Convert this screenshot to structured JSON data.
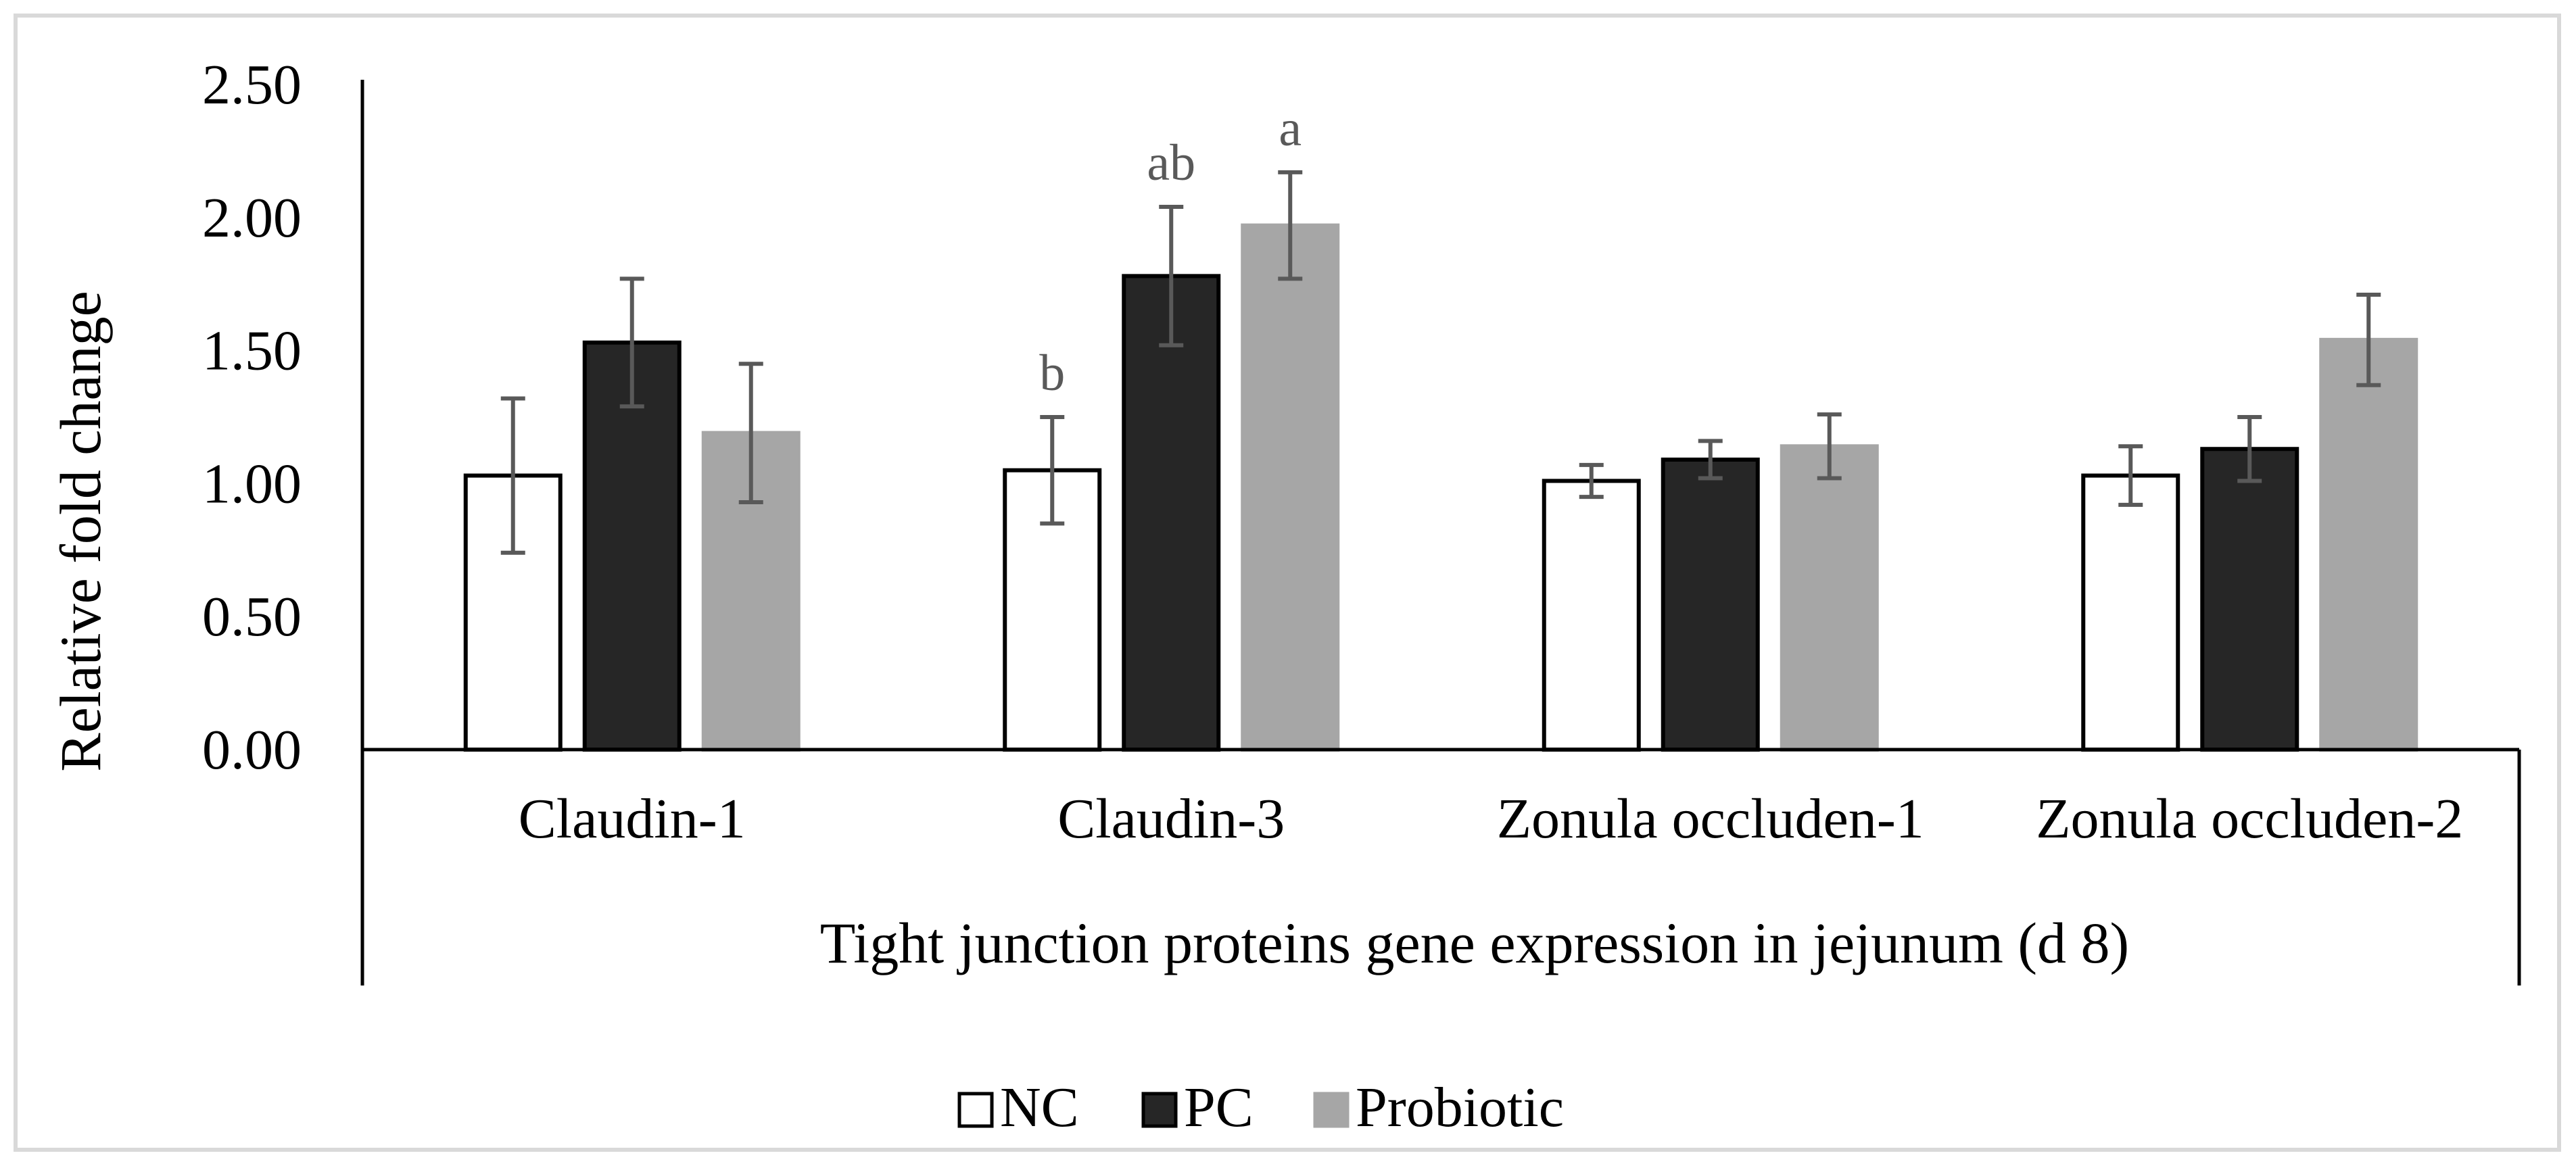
{
  "chart_data": {
    "type": "bar",
    "title": "",
    "ylabel": "Relative fold change",
    "xlabel": "Tight junction proteins gene expression in jejunum (d 8)",
    "ylim": [
      0,
      2.5
    ],
    "yticks": [
      "0.00",
      "0.50",
      "1.00",
      "1.50",
      "2.00",
      "2.50"
    ],
    "categories": [
      "Claudin-1",
      "Claudin-3",
      "Zonula occluden-1",
      "Zonula occluden-2"
    ],
    "series": [
      {
        "name": "NC",
        "fill": "#ffffff",
        "stroke": "#000000",
        "values": [
          1.03,
          1.05,
          1.01,
          1.03
        ],
        "errors": [
          0.29,
          0.2,
          0.06,
          0.11
        ],
        "sig_labels": [
          "",
          "b",
          "",
          ""
        ]
      },
      {
        "name": "PC",
        "fill": "#262626",
        "stroke": "#000000",
        "values": [
          1.53,
          1.78,
          1.09,
          1.13
        ],
        "errors": [
          0.24,
          0.26,
          0.07,
          0.12
        ],
        "sig_labels": [
          "",
          "ab",
          "",
          ""
        ]
      },
      {
        "name": "Probiotic",
        "fill": "#a6a6a6",
        "stroke": "#a6a6a6",
        "values": [
          1.19,
          1.97,
          1.14,
          1.54
        ],
        "errors": [
          0.26,
          0.2,
          0.12,
          0.17
        ],
        "sig_labels": [
          "",
          "a",
          "",
          ""
        ]
      }
    ],
    "legend_position": "bottom-center",
    "grid": false
  }
}
